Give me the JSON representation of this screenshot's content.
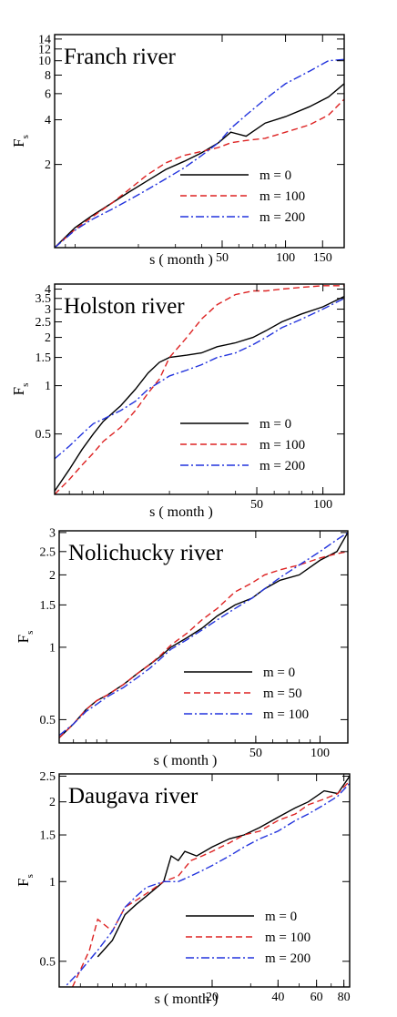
{
  "chart_data": [
    {
      "type": "line",
      "title": "Franch river",
      "xlabel": "s ( month )",
      "ylabel": "F",
      "ylabel_sub": "s",
      "xscale": "log",
      "yscale": "log",
      "xlim": [
        8,
        190
      ],
      "ylim": [
        0.55,
        15
      ],
      "xticks": [
        50,
        100,
        150
      ],
      "yticks": [
        2,
        4,
        6,
        8,
        10,
        12,
        14
      ],
      "legend_position": "right-middle",
      "series": [
        {
          "name": "m = 0",
          "color": "#000000",
          "dash": "solid",
          "x": [
            8,
            10,
            12,
            15,
            18,
            22,
            27,
            33,
            40,
            48,
            55,
            65,
            80,
            100,
            130,
            160,
            190
          ],
          "y": [
            0.55,
            0.75,
            0.9,
            1.1,
            1.3,
            1.55,
            1.85,
            2.1,
            2.4,
            2.8,
            3.3,
            3.1,
            3.8,
            4.2,
            4.9,
            5.7,
            7.0
          ]
        },
        {
          "name": "m = 100",
          "color": "#dd2222",
          "dash": "dashed",
          "x": [
            8,
            10,
            12,
            15,
            18,
            22,
            27,
            33,
            40,
            48,
            55,
            65,
            80,
            100,
            130,
            160,
            190
          ],
          "y": [
            0.55,
            0.73,
            0.88,
            1.1,
            1.35,
            1.7,
            2.05,
            2.3,
            2.45,
            2.6,
            2.8,
            2.9,
            3.0,
            3.3,
            3.7,
            4.3,
            5.5
          ]
        },
        {
          "name": "m = 200",
          "color": "#2233dd",
          "dash": "dashdot",
          "x": [
            8,
            10,
            12,
            15,
            18,
            22,
            27,
            33,
            40,
            48,
            55,
            65,
            80,
            100,
            130,
            160,
            190
          ],
          "y": [
            0.55,
            0.72,
            0.85,
            1.0,
            1.15,
            1.35,
            1.6,
            1.9,
            2.3,
            2.8,
            3.5,
            4.3,
            5.5,
            7.0,
            8.5,
            10.0,
            10.2
          ]
        }
      ]
    },
    {
      "type": "line",
      "title": "Holston river",
      "xlabel": "s ( month )",
      "ylabel": "F",
      "ylabel_sub": "s",
      "xscale": "log",
      "yscale": "log",
      "xlim": [
        6,
        125
      ],
      "ylim": [
        0.21,
        4.3
      ],
      "xticks": [
        50,
        100
      ],
      "yticks": [
        0.5,
        1,
        1.5,
        2,
        2.5,
        3,
        3.5,
        4
      ],
      "legend_position": "bottom-right",
      "series": [
        {
          "name": "m = 0",
          "color": "#000000",
          "dash": "solid",
          "x": [
            6,
            7,
            8,
            9,
            10,
            12,
            14,
            16,
            18,
            20,
            24,
            28,
            33,
            40,
            48,
            55,
            65,
            80,
            100,
            125
          ],
          "y": [
            0.22,
            0.3,
            0.4,
            0.5,
            0.6,
            0.75,
            0.95,
            1.2,
            1.4,
            1.5,
            1.55,
            1.6,
            1.75,
            1.85,
            2.0,
            2.2,
            2.5,
            2.8,
            3.1,
            3.6
          ]
        },
        {
          "name": "m = 100",
          "color": "#dd2222",
          "dash": "dashed",
          "x": [
            6,
            7,
            8,
            9,
            10,
            12,
            14,
            16,
            18,
            20,
            24,
            28,
            33,
            40,
            48,
            55,
            65,
            80,
            100,
            125
          ],
          "y": [
            0.21,
            0.26,
            0.32,
            0.38,
            0.45,
            0.55,
            0.7,
            0.9,
            1.1,
            1.5,
            2.0,
            2.6,
            3.2,
            3.7,
            3.9,
            3.9,
            4.0,
            4.1,
            4.2,
            4.2
          ]
        },
        {
          "name": "m = 200",
          "color": "#2233dd",
          "dash": "dashdot",
          "x": [
            6,
            7,
            8,
            9,
            10,
            12,
            14,
            16,
            18,
            20,
            24,
            28,
            33,
            40,
            48,
            55,
            65,
            80,
            100,
            125
          ],
          "y": [
            0.35,
            0.42,
            0.5,
            0.58,
            0.62,
            0.7,
            0.8,
            0.95,
            1.05,
            1.15,
            1.25,
            1.35,
            1.5,
            1.6,
            1.8,
            2.0,
            2.3,
            2.6,
            3.0,
            3.5
          ]
        }
      ]
    },
    {
      "type": "line",
      "title": "Nolichucky river",
      "xlabel": "s ( month )",
      "ylabel": "F",
      "ylabel_sub": "s",
      "xscale": "log",
      "yscale": "log",
      "xlim": [
        6,
        135
      ],
      "ylim": [
        0.4,
        3.05
      ],
      "xticks": [
        50,
        100
      ],
      "yticks": [
        0.5,
        1,
        1.5,
        2,
        2.5,
        3
      ],
      "legend_position": "bottom-right",
      "series": [
        {
          "name": "m = 0",
          "color": "#000000",
          "dash": "solid",
          "x": [
            6,
            7,
            8,
            9,
            10,
            12,
            14,
            16,
            18,
            20,
            24,
            28,
            33,
            40,
            48,
            55,
            65,
            80,
            100,
            120,
            135
          ],
          "y": [
            0.42,
            0.48,
            0.55,
            0.6,
            0.63,
            0.7,
            0.78,
            0.85,
            0.92,
            1.0,
            1.1,
            1.2,
            1.35,
            1.5,
            1.6,
            1.75,
            1.9,
            2.0,
            2.3,
            2.5,
            3.0
          ]
        },
        {
          "name": "m = 50",
          "color": "#dd2222",
          "dash": "dashed",
          "x": [
            6,
            7,
            8,
            9,
            10,
            12,
            14,
            16,
            18,
            20,
            24,
            28,
            33,
            40,
            48,
            55,
            65,
            80,
            100,
            120,
            135
          ],
          "y": [
            0.42,
            0.48,
            0.55,
            0.6,
            0.63,
            0.7,
            0.78,
            0.85,
            0.93,
            1.02,
            1.15,
            1.3,
            1.45,
            1.7,
            1.85,
            2.0,
            2.1,
            2.2,
            2.35,
            2.45,
            2.5
          ]
        },
        {
          "name": "m = 100",
          "color": "#2233dd",
          "dash": "dashdot",
          "x": [
            6,
            7,
            8,
            9,
            10,
            12,
            14,
            16,
            18,
            20,
            24,
            28,
            33,
            40,
            48,
            55,
            65,
            80,
            100,
            120,
            135
          ],
          "y": [
            0.43,
            0.48,
            0.54,
            0.58,
            0.62,
            0.68,
            0.75,
            0.82,
            0.9,
            0.98,
            1.08,
            1.18,
            1.3,
            1.45,
            1.6,
            1.75,
            1.95,
            2.2,
            2.5,
            2.8,
            3.0
          ]
        }
      ]
    },
    {
      "type": "line",
      "title": "Daugava river",
      "xlabel": "s ( month )",
      "ylabel": "F",
      "ylabel_sub": "s",
      "xscale": "log",
      "yscale": "log",
      "xlim": [
        4,
        85
      ],
      "ylim": [
        0.4,
        2.55
      ],
      "xticks": [
        20,
        40,
        60,
        80
      ],
      "yticks": [
        0.5,
        1,
        1.5,
        2,
        2.5
      ],
      "legend_position": "bottom-right",
      "series": [
        {
          "name": "m = 0",
          "color": "#000000",
          "dash": "solid",
          "x": [
            6,
            7,
            8,
            9,
            10,
            12,
            13,
            14,
            15,
            17,
            20,
            24,
            28,
            33,
            40,
            48,
            55,
            65,
            75,
            85
          ],
          "y": [
            0.52,
            0.6,
            0.75,
            0.82,
            0.88,
            1.0,
            1.25,
            1.2,
            1.3,
            1.25,
            1.35,
            1.45,
            1.5,
            1.6,
            1.75,
            1.9,
            2.0,
            2.2,
            2.15,
            2.5
          ]
        },
        {
          "name": "m = 100",
          "color": "#dd2222",
          "dash": "dashed",
          "x": [
            4.6,
            5.5,
            6,
            7,
            8,
            9,
            10,
            12,
            14,
            16,
            18,
            20,
            24,
            28,
            33,
            40,
            48,
            55,
            65,
            75,
            85
          ],
          "y": [
            0.4,
            0.55,
            0.72,
            0.65,
            0.8,
            0.85,
            0.9,
            1.0,
            1.05,
            1.2,
            1.25,
            1.3,
            1.4,
            1.5,
            1.55,
            1.7,
            1.8,
            1.95,
            2.05,
            2.15,
            2.4
          ]
        },
        {
          "name": "m = 200",
          "color": "#2233dd",
          "dash": "dashdot",
          "x": [
            4,
            5,
            6,
            7,
            8,
            9,
            10,
            12,
            14,
            16,
            18,
            20,
            24,
            28,
            33,
            40,
            48,
            55,
            65,
            75,
            85
          ],
          "y": [
            0.38,
            0.46,
            0.55,
            0.65,
            0.8,
            0.88,
            0.95,
            1.0,
            1.0,
            1.05,
            1.1,
            1.15,
            1.25,
            1.35,
            1.45,
            1.55,
            1.7,
            1.8,
            1.95,
            2.1,
            2.35
          ]
        }
      ]
    }
  ]
}
